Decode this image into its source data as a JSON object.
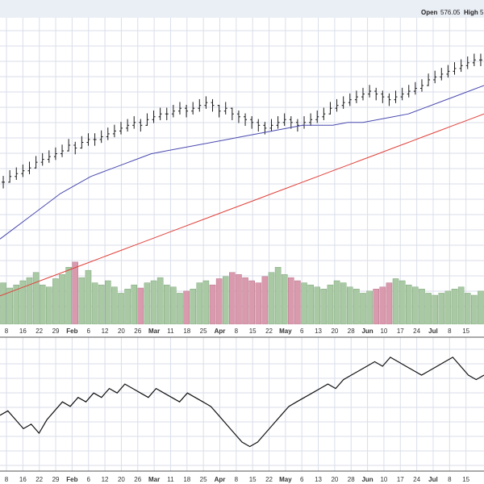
{
  "header": {
    "open_label": "Open",
    "open_value": "576.05",
    "high_label": "High",
    "high_value": "5"
  },
  "colors": {
    "background": "#ffffff",
    "header_bg": "#eaeef5",
    "grid": "#d9deea",
    "price_bar": "#1a1a1a",
    "ma_blue": "#4a4ab0",
    "ma_red": "#e0413a",
    "volume_up": "#a9c9a4",
    "volume_down": "#d99aae",
    "lower_line": "#111111"
  },
  "chart_data": [
    {
      "type": "line",
      "name": "price",
      "description_series": [
        "price_bars",
        "moving_average_blue",
        "moving_average_red"
      ],
      "price_bars_close": [
        120,
        122,
        123,
        124,
        125,
        127,
        128,
        129,
        130,
        131,
        133,
        132,
        134,
        135,
        135,
        136,
        137,
        138,
        139,
        140,
        141,
        140,
        142,
        143,
        144,
        144,
        145,
        146,
        145,
        146,
        147,
        148,
        147,
        145,
        146,
        144,
        143,
        142,
        141,
        140,
        139,
        140,
        141,
        142,
        141,
        140,
        141,
        142,
        143,
        144,
        146,
        147,
        148,
        149,
        150,
        151,
        152,
        151,
        150,
        149,
        150,
        151,
        152,
        153,
        154,
        156,
        157,
        158,
        159,
        160,
        161,
        162,
        163,
        163
      ],
      "moving_average_blue": [
        100,
        104,
        108,
        112,
        116,
        119,
        122,
        124,
        126,
        128,
        130,
        131,
        132,
        133,
        134,
        135,
        136,
        137,
        138,
        139,
        140,
        140,
        140,
        141,
        141,
        142,
        143,
        144,
        146,
        148,
        150,
        152,
        154
      ],
      "moving_average_red": [
        80,
        82,
        84,
        86,
        88,
        90,
        92,
        94,
        96,
        98,
        100,
        102,
        104,
        106,
        108,
        110,
        112,
        114,
        116,
        118,
        120,
        122,
        124,
        126,
        128,
        130,
        132,
        134,
        136,
        138,
        140,
        142,
        144
      ]
    },
    {
      "type": "bar",
      "name": "volume",
      "values": [
        40,
        35,
        38,
        42,
        45,
        50,
        38,
        36,
        44,
        48,
        55,
        60,
        45,
        52,
        40,
        38,
        42,
        36,
        30,
        34,
        38,
        35,
        40,
        42,
        45,
        38,
        36,
        30,
        32,
        34,
        40,
        42,
        38,
        44,
        46,
        50,
        48,
        45,
        42,
        40,
        46,
        50,
        55,
        48,
        45,
        42,
        40,
        38,
        36,
        34,
        38,
        42,
        40,
        36,
        34,
        30,
        32,
        34,
        36,
        40,
        44,
        42,
        38,
        36,
        34,
        30,
        28,
        30,
        32,
        34,
        36,
        30,
        28,
        32
      ]
    },
    {
      "type": "line",
      "name": "lower_indicator",
      "values": [
        50,
        52,
        48,
        44,
        46,
        42,
        48,
        52,
        56,
        54,
        58,
        56,
        60,
        58,
        62,
        60,
        64,
        62,
        60,
        58,
        62,
        60,
        58,
        56,
        60,
        58,
        56,
        54,
        50,
        46,
        42,
        38,
        36,
        38,
        42,
        46,
        50,
        54,
        56,
        58,
        60,
        62,
        64,
        62,
        66,
        68,
        70,
        72,
        74,
        72,
        76,
        74,
        72,
        70,
        68,
        70,
        72,
        74,
        76,
        72,
        68,
        66,
        68
      ]
    }
  ],
  "x_ticks": {
    "labels": [
      "8",
      "16",
      "22",
      "29",
      "Feb",
      "6",
      "12",
      "20",
      "26",
      "Mar",
      "11",
      "18",
      "25",
      "Apr",
      "8",
      "15",
      "22",
      "May",
      "6",
      "13",
      "20",
      "28",
      "Jun",
      "10",
      "17",
      "24",
      "Jul",
      "8",
      "15"
    ]
  }
}
